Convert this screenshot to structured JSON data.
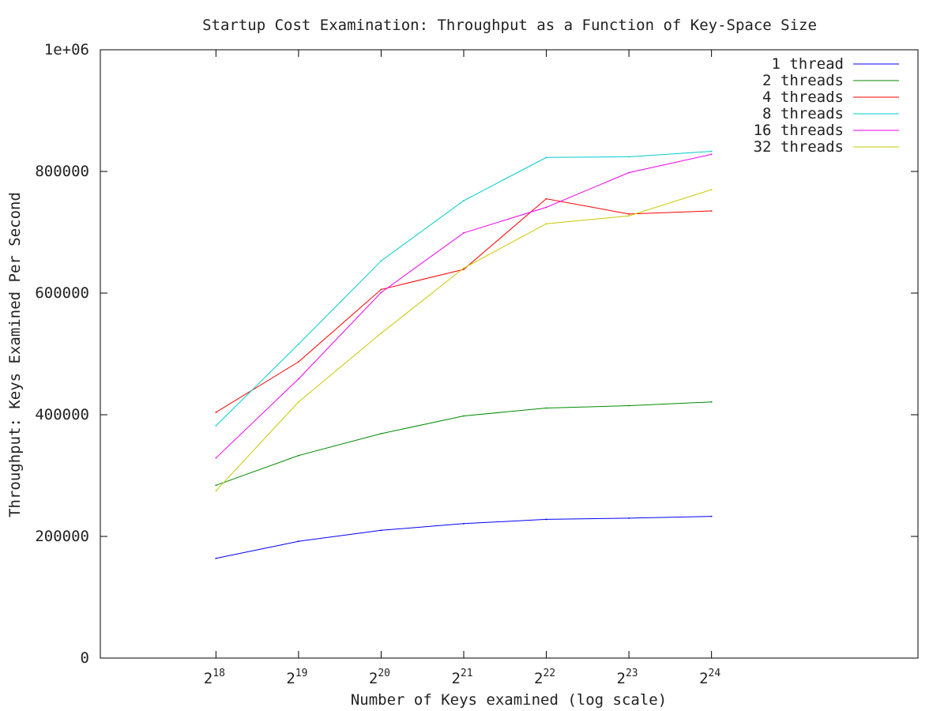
{
  "chart_data": {
    "type": "line",
    "title": "Startup Cost Examination: Throughput as a Function of Key-Space Size",
    "xlabel": "Number of Keys examined (log scale)",
    "ylabel": "Throughput: Keys Examined Per Second",
    "x_scale": "log2",
    "x_tick_base": "2",
    "x_tick_exponents": [
      "18",
      "19",
      "20",
      "21",
      "22",
      "23",
      "24"
    ],
    "x_exponent_range": [
      16.6,
      26.5
    ],
    "y_ticks": [
      "0",
      "200000",
      "400000",
      "600000",
      "800000",
      "1e+06"
    ],
    "ylim": [
      0,
      1000000
    ],
    "grid": false,
    "legend_position": "top-right",
    "series": [
      {
        "name": "1 thread",
        "color": "#0000ff",
        "values": [
          164000,
          192000,
          210000,
          221000,
          228000,
          230000,
          233000
        ]
      },
      {
        "name": "2 threads",
        "color": "#008b00",
        "values": [
          284000,
          333000,
          369000,
          398000,
          411000,
          415000,
          421000
        ]
      },
      {
        "name": "4 threads",
        "color": "#ff0000",
        "values": [
          404000,
          487000,
          606000,
          639000,
          755000,
          730000,
          735000
        ]
      },
      {
        "name": "8 threads",
        "color": "#00cccc",
        "values": [
          382000,
          516000,
          653000,
          752000,
          823000,
          824000,
          833000
        ]
      },
      {
        "name": "16 threads",
        "color": "#ee00ee",
        "values": [
          329000,
          459000,
          601000,
          699000,
          741000,
          798000,
          828000
        ]
      },
      {
        "name": "32 threads",
        "color": "#c8c800",
        "values": [
          275000,
          421000,
          534000,
          641000,
          714000,
          727000,
          770000
        ]
      }
    ]
  }
}
